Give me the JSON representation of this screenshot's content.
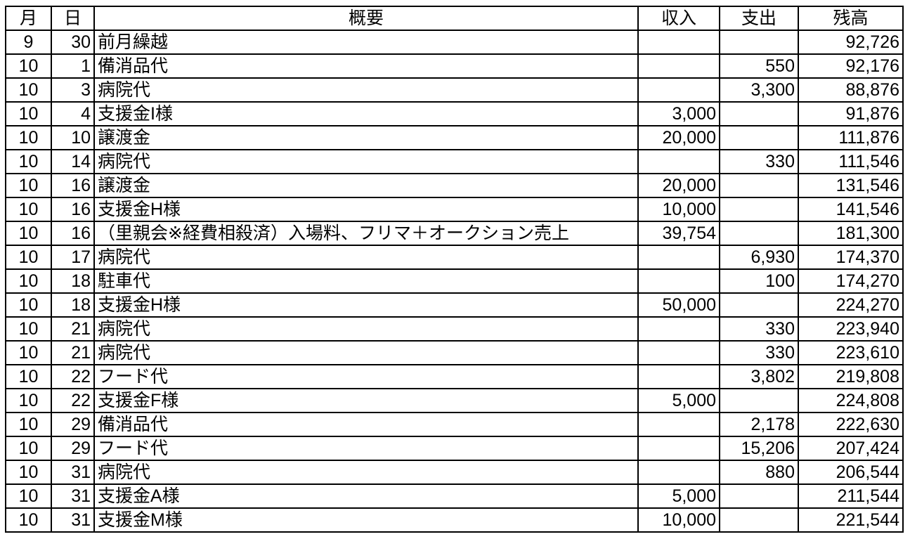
{
  "headers": {
    "month": "月",
    "day": "日",
    "summary": "概要",
    "income": "収入",
    "expense": "支出",
    "balance": "残高"
  },
  "rows": [
    {
      "month": "9",
      "day": "30",
      "summary": "前月繰越",
      "income": "",
      "expense": "",
      "balance": "92,726"
    },
    {
      "month": "10",
      "day": "1",
      "summary": "備消品代",
      "income": "",
      "expense": "550",
      "balance": "92,176"
    },
    {
      "month": "10",
      "day": "3",
      "summary": "病院代",
      "income": "",
      "expense": "3,300",
      "balance": "88,876"
    },
    {
      "month": "10",
      "day": "4",
      "summary": "支援金I様",
      "income": "3,000",
      "expense": "",
      "balance": "91,876"
    },
    {
      "month": "10",
      "day": "10",
      "summary": "譲渡金",
      "income": "20,000",
      "expense": "",
      "balance": "111,876"
    },
    {
      "month": "10",
      "day": "14",
      "summary": "病院代",
      "income": "",
      "expense": "330",
      "balance": "111,546"
    },
    {
      "month": "10",
      "day": "16",
      "summary": "譲渡金",
      "income": "20,000",
      "expense": "",
      "balance": "131,546"
    },
    {
      "month": "10",
      "day": "16",
      "summary": "支援金H様",
      "income": "10,000",
      "expense": "",
      "balance": "141,546"
    },
    {
      "month": "10",
      "day": "16",
      "summary": "（里親会※経費相殺済）入場料、フリマ＋オークション売上",
      "income": "39,754",
      "expense": "",
      "balance": "181,300"
    },
    {
      "month": "10",
      "day": "17",
      "summary": "病院代",
      "income": "",
      "expense": "6,930",
      "balance": "174,370"
    },
    {
      "month": "10",
      "day": "18",
      "summary": "駐車代",
      "income": "",
      "expense": "100",
      "balance": "174,270"
    },
    {
      "month": "10",
      "day": "18",
      "summary": "支援金H様",
      "income": "50,000",
      "expense": "",
      "balance": "224,270"
    },
    {
      "month": "10",
      "day": "21",
      "summary": "病院代",
      "income": "",
      "expense": "330",
      "balance": "223,940"
    },
    {
      "month": "10",
      "day": "21",
      "summary": "病院代",
      "income": "",
      "expense": "330",
      "balance": "223,610"
    },
    {
      "month": "10",
      "day": "22",
      "summary": "フード代",
      "income": "",
      "expense": "3,802",
      "balance": "219,808"
    },
    {
      "month": "10",
      "day": "22",
      "summary": "支援金F様",
      "income": "5,000",
      "expense": "",
      "balance": "224,808"
    },
    {
      "month": "10",
      "day": "29",
      "summary": "備消品代",
      "income": "",
      "expense": "2,178",
      "balance": "222,630"
    },
    {
      "month": "10",
      "day": "29",
      "summary": "フード代",
      "income": "",
      "expense": "15,206",
      "balance": "207,424"
    },
    {
      "month": "10",
      "day": "31",
      "summary": "病院代",
      "income": "",
      "expense": "880",
      "balance": "206,544"
    },
    {
      "month": "10",
      "day": "31",
      "summary": "支援金A様",
      "income": "5,000",
      "expense": "",
      "balance": "211,544"
    },
    {
      "month": "10",
      "day": "31",
      "summary": "支援金M様",
      "income": "10,000",
      "expense": "",
      "balance": "221,544"
    }
  ]
}
